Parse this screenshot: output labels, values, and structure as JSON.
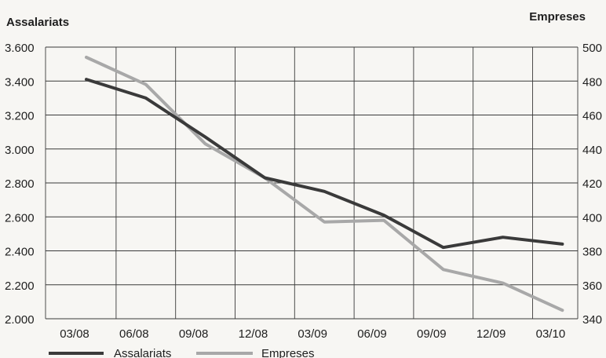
{
  "chart_data": {
    "type": "line",
    "categories": [
      "03/08",
      "06/08",
      "09/08",
      "12/08",
      "03/09",
      "06/09",
      "09/09",
      "12/09",
      "03/10"
    ],
    "series": [
      {
        "name": "Assalariats",
        "axis": "left",
        "color": "#3a3a3a",
        "values": [
          3410,
          3300,
          3070,
          2830,
          2750,
          2610,
          2420,
          2480,
          2440
        ]
      },
      {
        "name": "Empreses",
        "axis": "right",
        "color": "#a8a8a8",
        "values": [
          494,
          478,
          443,
          423,
          397,
          398,
          369,
          361,
          345
        ]
      }
    ],
    "ylabel_left": "Assalariats",
    "ylabel_right": "Empreses",
    "y_left": {
      "range": [
        2000,
        3600
      ],
      "ticks": [
        "2.000",
        "2.200",
        "2.400",
        "2.600",
        "2.800",
        "3.000",
        "3.200",
        "3.400",
        "3.600"
      ]
    },
    "y_right": {
      "range": [
        340,
        500
      ],
      "ticks": [
        "340",
        "360",
        "380",
        "400",
        "420",
        "440",
        "460",
        "480",
        "500"
      ]
    },
    "grid": true,
    "legend": "bottom-left"
  }
}
